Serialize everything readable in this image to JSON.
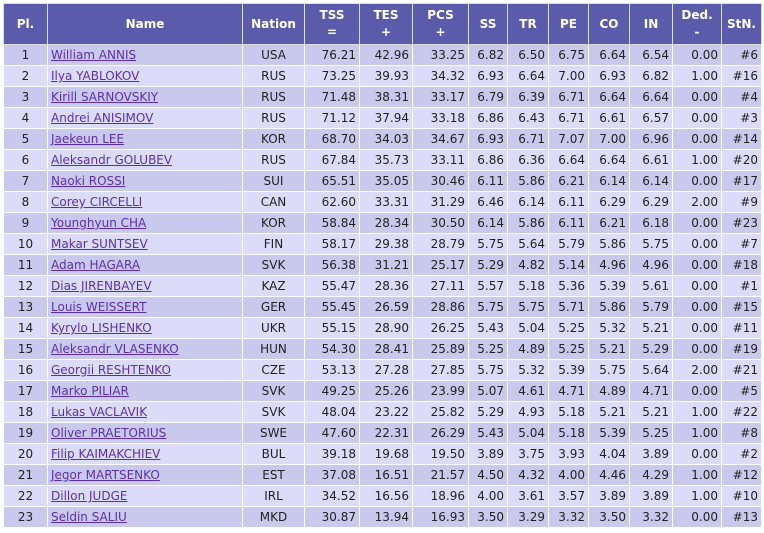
{
  "table": {
    "header": [
      {
        "text": "Pl."
      },
      {
        "text": "Name"
      },
      {
        "text": "Nation"
      },
      {
        "text": "TSS",
        "sub": "="
      },
      {
        "text": "TES",
        "sub": "+"
      },
      {
        "text": "PCS",
        "sub": "+"
      },
      {
        "text": "SS"
      },
      {
        "text": "TR"
      },
      {
        "text": "PE"
      },
      {
        "text": "CO"
      },
      {
        "text": "IN"
      },
      {
        "text": "Ded.",
        "sub": "-"
      },
      {
        "text": "StN."
      }
    ],
    "rows": [
      [
        "1",
        "William ANNIS",
        "USA",
        "76.21",
        "42.96",
        "33.25",
        "6.82",
        "6.50",
        "6.75",
        "6.64",
        "6.54",
        "0.00",
        "#6"
      ],
      [
        "2",
        "Ilya YABLOKOV",
        "RUS",
        "73.25",
        "39.93",
        "34.32",
        "6.93",
        "6.64",
        "7.00",
        "6.93",
        "6.82",
        "1.00",
        "#16"
      ],
      [
        "3",
        "Kirill SARNOVSKIY",
        "RUS",
        "71.48",
        "38.31",
        "33.17",
        "6.79",
        "6.39",
        "6.71",
        "6.64",
        "6.64",
        "0.00",
        "#4"
      ],
      [
        "4",
        "Andrei ANISIMOV",
        "RUS",
        "71.12",
        "37.94",
        "33.18",
        "6.86",
        "6.43",
        "6.71",
        "6.61",
        "6.57",
        "0.00",
        "#3"
      ],
      [
        "5",
        "Jaekeun LEE",
        "KOR",
        "68.70",
        "34.03",
        "34.67",
        "6.93",
        "6.71",
        "7.07",
        "7.00",
        "6.96",
        "0.00",
        "#14"
      ],
      [
        "6",
        "Aleksandr GOLUBEV",
        "RUS",
        "67.84",
        "35.73",
        "33.11",
        "6.86",
        "6.36",
        "6.64",
        "6.64",
        "6.61",
        "1.00",
        "#20"
      ],
      [
        "7",
        "Naoki ROSSI",
        "SUI",
        "65.51",
        "35.05",
        "30.46",
        "6.11",
        "5.86",
        "6.21",
        "6.14",
        "6.14",
        "0.00",
        "#17"
      ],
      [
        "8",
        "Corey CIRCELLI",
        "CAN",
        "62.60",
        "33.31",
        "31.29",
        "6.46",
        "6.14",
        "6.11",
        "6.29",
        "6.29",
        "2.00",
        "#9"
      ],
      [
        "9",
        "Younghyun CHA",
        "KOR",
        "58.84",
        "28.34",
        "30.50",
        "6.14",
        "5.86",
        "6.11",
        "6.21",
        "6.18",
        "0.00",
        "#23"
      ],
      [
        "10",
        "Makar SUNTSEV",
        "FIN",
        "58.17",
        "29.38",
        "28.79",
        "5.75",
        "5.64",
        "5.79",
        "5.86",
        "5.75",
        "0.00",
        "#7"
      ],
      [
        "11",
        "Adam HAGARA",
        "SVK",
        "56.38",
        "31.21",
        "25.17",
        "5.29",
        "4.82",
        "5.14",
        "4.96",
        "4.96",
        "0.00",
        "#18"
      ],
      [
        "12",
        "Dias JIRENBAYEV",
        "KAZ",
        "55.47",
        "28.36",
        "27.11",
        "5.57",
        "5.18",
        "5.36",
        "5.39",
        "5.61",
        "0.00",
        "#1"
      ],
      [
        "13",
        "Louis WEISSERT",
        "GER",
        "55.45",
        "26.59",
        "28.86",
        "5.75",
        "5.75",
        "5.71",
        "5.86",
        "5.79",
        "0.00",
        "#15"
      ],
      [
        "14",
        "Kyrylo LISHENKO",
        "UKR",
        "55.15",
        "28.90",
        "26.25",
        "5.43",
        "5.04",
        "5.25",
        "5.32",
        "5.21",
        "0.00",
        "#11"
      ],
      [
        "15",
        "Aleksandr VLASENKO",
        "HUN",
        "54.30",
        "28.41",
        "25.89",
        "5.25",
        "4.89",
        "5.25",
        "5.21",
        "5.29",
        "0.00",
        "#19"
      ],
      [
        "16",
        "Georgii RESHTENKO",
        "CZE",
        "53.13",
        "27.28",
        "27.85",
        "5.75",
        "5.32",
        "5.39",
        "5.75",
        "5.64",
        "2.00",
        "#21"
      ],
      [
        "17",
        "Marko PILIAR",
        "SVK",
        "49.25",
        "25.26",
        "23.99",
        "5.07",
        "4.61",
        "4.71",
        "4.89",
        "4.71",
        "0.00",
        "#5"
      ],
      [
        "18",
        "Lukas VACLAVIK",
        "SVK",
        "48.04",
        "23.22",
        "25.82",
        "5.29",
        "4.93",
        "5.18",
        "5.21",
        "5.21",
        "1.00",
        "#22"
      ],
      [
        "19",
        "Oliver PRAETORIUS",
        "SWE",
        "47.60",
        "22.31",
        "26.29",
        "5.43",
        "5.04",
        "5.18",
        "5.39",
        "5.25",
        "1.00",
        "#8"
      ],
      [
        "20",
        "Filip KAIMAKCHIEV",
        "BUL",
        "39.18",
        "19.68",
        "19.50",
        "3.89",
        "3.75",
        "3.93",
        "4.04",
        "3.89",
        "0.00",
        "#2"
      ],
      [
        "21",
        "Jegor MARTSENKO",
        "EST",
        "37.08",
        "16.51",
        "21.57",
        "4.50",
        "4.32",
        "4.00",
        "4.46",
        "4.29",
        "1.00",
        "#12"
      ],
      [
        "22",
        "Dillon JUDGE",
        "IRL",
        "34.52",
        "16.56",
        "18.96",
        "4.00",
        "3.61",
        "3.57",
        "3.89",
        "3.89",
        "1.00",
        "#10"
      ],
      [
        "23",
        "Seldin SALIU",
        "MKD",
        "30.87",
        "13.94",
        "16.93",
        "3.50",
        "3.29",
        "3.32",
        "3.50",
        "3.32",
        "0.00",
        "#13"
      ]
    ]
  }
}
